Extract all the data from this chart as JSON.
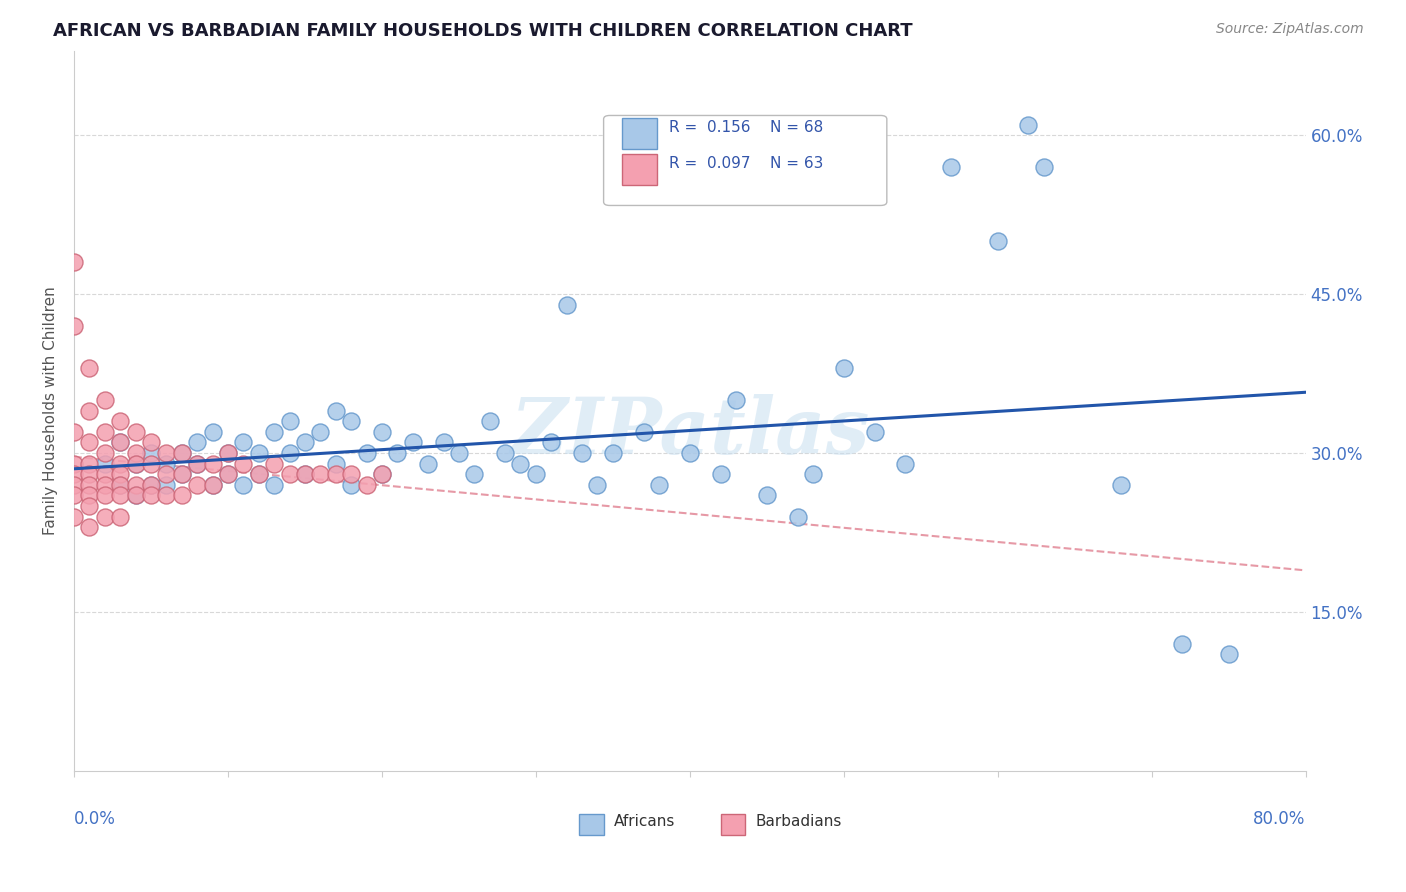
{
  "title": "AFRICAN VS BARBADIAN FAMILY HOUSEHOLDS WITH CHILDREN CORRELATION CHART",
  "source": "Source: ZipAtlas.com",
  "ylabel": "Family Households with Children",
  "yticks": [
    "15.0%",
    "30.0%",
    "45.0%",
    "60.0%"
  ],
  "ytick_vals": [
    0.15,
    0.3,
    0.45,
    0.6
  ],
  "xlim": [
    0.0,
    0.8
  ],
  "ylim": [
    0.0,
    0.68
  ],
  "african_color": "#a8c8e8",
  "barbadian_color": "#f4a0b0",
  "trendline_african_color": "#2255aa",
  "trendline_barbadian_color": "#e08090",
  "watermark": "ZIPatlas",
  "africans_x": [
    0.02,
    0.03,
    0.03,
    0.04,
    0.04,
    0.05,
    0.05,
    0.06,
    0.06,
    0.07,
    0.07,
    0.08,
    0.08,
    0.09,
    0.09,
    0.1,
    0.1,
    0.11,
    0.11,
    0.12,
    0.12,
    0.13,
    0.13,
    0.14,
    0.14,
    0.15,
    0.15,
    0.16,
    0.17,
    0.17,
    0.18,
    0.18,
    0.19,
    0.2,
    0.2,
    0.21,
    0.22,
    0.23,
    0.24,
    0.25,
    0.26,
    0.27,
    0.28,
    0.29,
    0.3,
    0.31,
    0.32,
    0.33,
    0.34,
    0.35,
    0.37,
    0.38,
    0.4,
    0.42,
    0.43,
    0.45,
    0.47,
    0.48,
    0.5,
    0.52,
    0.54,
    0.57,
    0.6,
    0.62,
    0.63,
    0.68,
    0.72,
    0.75
  ],
  "africans_y": [
    0.29,
    0.27,
    0.31,
    0.29,
    0.26,
    0.3,
    0.27,
    0.29,
    0.27,
    0.3,
    0.28,
    0.31,
    0.29,
    0.32,
    0.27,
    0.3,
    0.28,
    0.31,
    0.27,
    0.3,
    0.28,
    0.32,
    0.27,
    0.33,
    0.3,
    0.31,
    0.28,
    0.32,
    0.34,
    0.29,
    0.33,
    0.27,
    0.3,
    0.32,
    0.28,
    0.3,
    0.31,
    0.29,
    0.31,
    0.3,
    0.28,
    0.33,
    0.3,
    0.29,
    0.28,
    0.31,
    0.44,
    0.3,
    0.27,
    0.3,
    0.32,
    0.27,
    0.3,
    0.28,
    0.35,
    0.26,
    0.24,
    0.28,
    0.38,
    0.32,
    0.29,
    0.57,
    0.5,
    0.61,
    0.57,
    0.27,
    0.12,
    0.11
  ],
  "barbadians_x": [
    0.0,
    0.0,
    0.0,
    0.0,
    0.0,
    0.0,
    0.0,
    0.0,
    0.01,
    0.01,
    0.01,
    0.01,
    0.01,
    0.01,
    0.01,
    0.01,
    0.01,
    0.02,
    0.02,
    0.02,
    0.02,
    0.02,
    0.02,
    0.02,
    0.03,
    0.03,
    0.03,
    0.03,
    0.03,
    0.03,
    0.03,
    0.04,
    0.04,
    0.04,
    0.04,
    0.04,
    0.05,
    0.05,
    0.05,
    0.05,
    0.06,
    0.06,
    0.06,
    0.07,
    0.07,
    0.07,
    0.08,
    0.08,
    0.09,
    0.09,
    0.1,
    0.1,
    0.11,
    0.12,
    0.13,
    0.14,
    0.15,
    0.16,
    0.17,
    0.18,
    0.19,
    0.2
  ],
  "barbadians_y": [
    0.48,
    0.42,
    0.32,
    0.29,
    0.28,
    0.27,
    0.26,
    0.24,
    0.38,
    0.34,
    0.31,
    0.29,
    0.28,
    0.27,
    0.26,
    0.25,
    0.23,
    0.35,
    0.32,
    0.3,
    0.28,
    0.27,
    0.26,
    0.24,
    0.33,
    0.31,
    0.29,
    0.28,
    0.27,
    0.26,
    0.24,
    0.32,
    0.3,
    0.29,
    0.27,
    0.26,
    0.31,
    0.29,
    0.27,
    0.26,
    0.3,
    0.28,
    0.26,
    0.3,
    0.28,
    0.26,
    0.29,
    0.27,
    0.29,
    0.27,
    0.3,
    0.28,
    0.29,
    0.28,
    0.29,
    0.28,
    0.28,
    0.28,
    0.28,
    0.28,
    0.27,
    0.28
  ]
}
